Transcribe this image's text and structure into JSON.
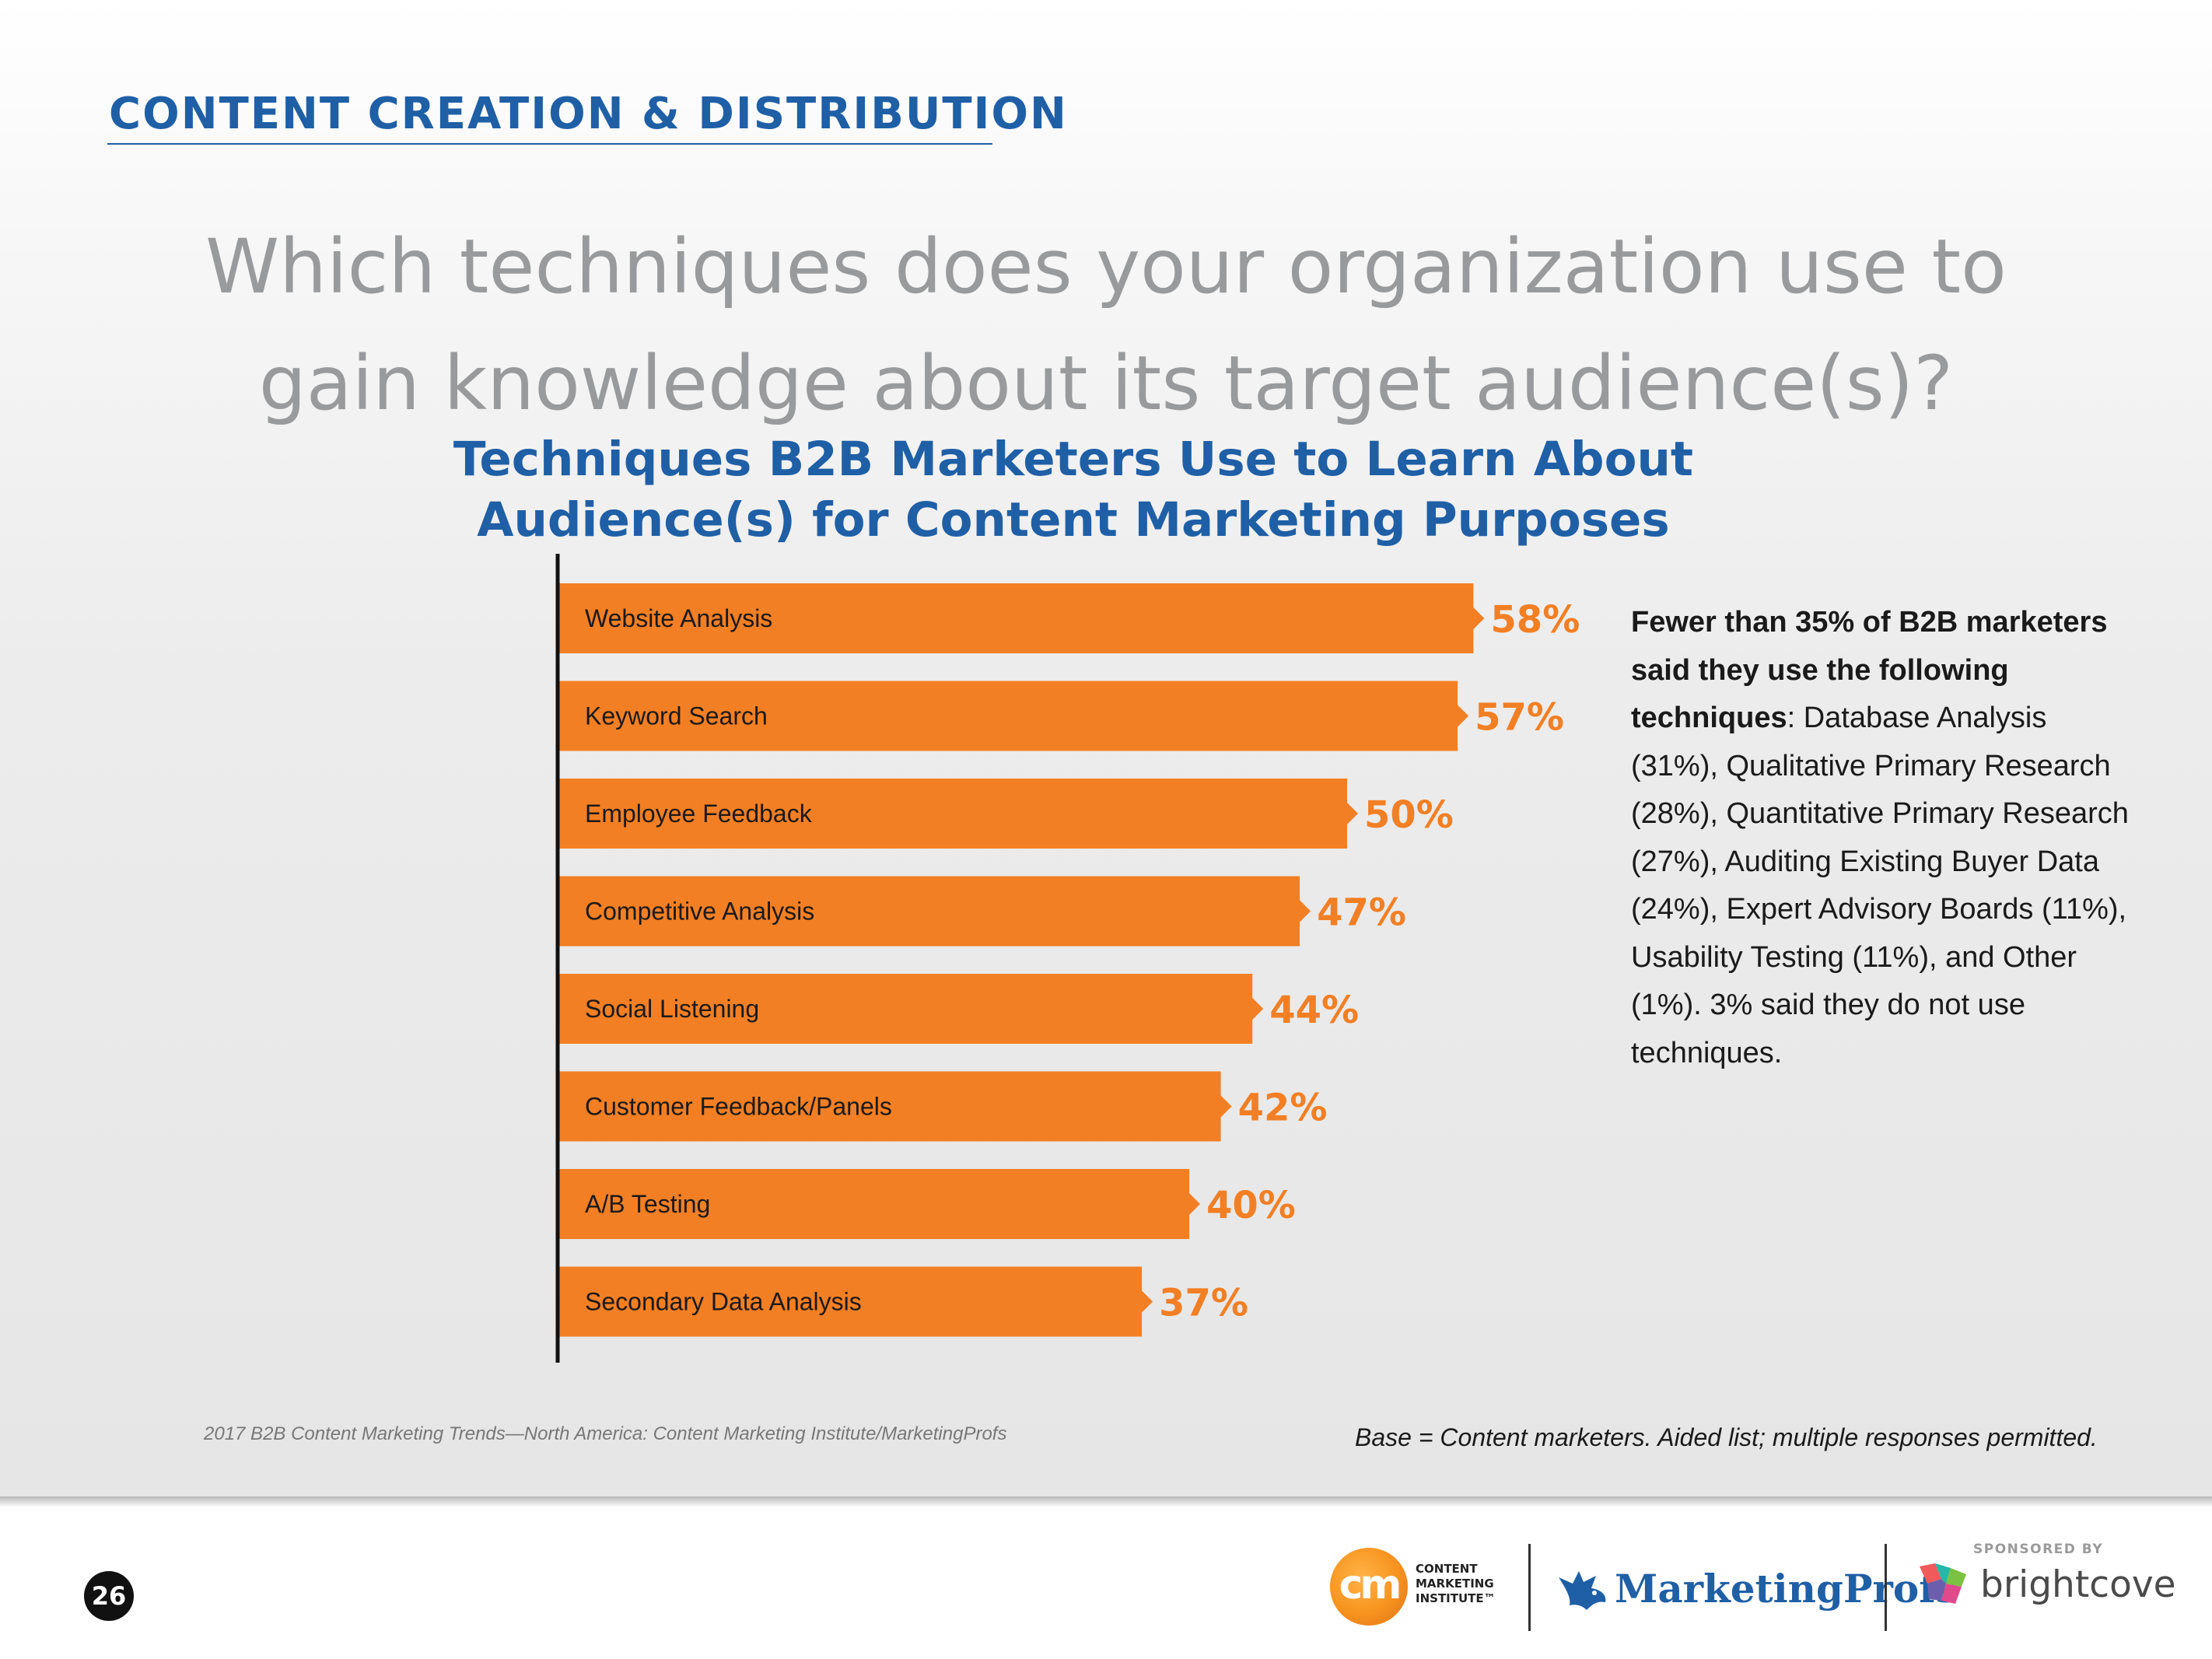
{
  "header": {
    "section_title": "CONTENT CREATION & DISTRIBUTION",
    "question_line1": "Which techniques does your organization use to",
    "question_line2": "gain knowledge about its target audience(s)?"
  },
  "chart_data": {
    "type": "bar",
    "orientation": "horizontal",
    "title_line1": "Techniques B2B Marketers Use to Learn About",
    "title_line2": "Audience(s) for Content Marketing Purposes",
    "categories": [
      "Website Analysis",
      "Keyword Search",
      "Employee Feedback",
      "Competitive Analysis",
      "Social Listening",
      "Customer Feedback/Panels",
      "A/B Testing",
      "Secondary Data Analysis"
    ],
    "values": [
      58,
      57,
      50,
      47,
      44,
      42,
      40,
      37
    ],
    "value_labels": [
      "58%",
      "57%",
      "50%",
      "47%",
      "44%",
      "42%",
      "40%",
      "37%"
    ],
    "unit": "%",
    "grid": false,
    "bar_color": "#f37f24",
    "label_color": "#f37f24"
  },
  "callout": {
    "bold_text": "Fewer than 35% of B2B marketers said they use the following techniques",
    "body_text": ": Database Analysis (31%), Qualitative Primary Research (28%), Quantitative Primary Research (27%), Auditing Existing Buyer Data (24%), Expert Advisory Boards (11%), Usability Testing (11%), and Other (1%). 3% said they do not use techniques."
  },
  "footer": {
    "source": "2017 B2B Content Marketing Trends—North America: Content Marketing Institute/MarketingProfs",
    "base_note": "Base = Content marketers. Aided list; multiple responses permitted.",
    "page_number": "26",
    "sponsored_by": "SPONSORED BY"
  },
  "logos": {
    "cmi_mark": "cm",
    "cmi_line1": "CONTENT",
    "cmi_line2": "MARKETING",
    "cmi_line3": "INSTITUTE™",
    "marketingprofs": "MarketingProfs",
    "brightcove": "brightcove"
  },
  "icons": {
    "marketingprofs_mark": "bird-icon",
    "brightcove_mark": "brightcove-mark-icon"
  },
  "colors": {
    "accent_blue": "#1f5fa6",
    "question_gray": "#999a9b",
    "bar_orange": "#f37f24"
  }
}
